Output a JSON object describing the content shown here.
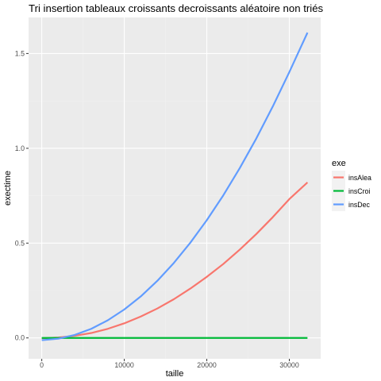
{
  "chart_data": {
    "type": "line",
    "title": "Tri insertion tableaux croissants decroissants aléatoire non triés",
    "xlabel": "taille",
    "ylabel": "exectime",
    "xlim": [
      -1600,
      33800
    ],
    "ylim": [
      -0.11,
      1.69
    ],
    "x_ticks": [
      0,
      10000,
      20000,
      30000
    ],
    "x_tick_labels": [
      "0",
      "10000",
      "20000",
      "30000"
    ],
    "y_ticks": [
      0.0,
      0.5,
      1.0,
      1.5
    ],
    "y_tick_labels": [
      "0.0",
      "0.5",
      "1.0",
      "1.5"
    ],
    "grid": true,
    "legend": {
      "title": "exe",
      "position": "right"
    },
    "series": [
      {
        "name": "insAlea",
        "color": "#F8766D",
        "x": [
          0,
          2000,
          4000,
          6000,
          8000,
          10000,
          12000,
          14000,
          16000,
          18000,
          20000,
          22000,
          24000,
          26000,
          28000,
          30000,
          32200
        ],
        "y": [
          -0.002,
          0.002,
          0.011,
          0.026,
          0.048,
          0.077,
          0.113,
          0.155,
          0.204,
          0.26,
          0.322,
          0.39,
          0.466,
          0.548,
          0.637,
          0.732,
          0.82
        ]
      },
      {
        "name": "insCroi",
        "color": "#00BA38",
        "x": [
          0,
          4000,
          8000,
          12000,
          16000,
          20000,
          24000,
          28000,
          32200
        ],
        "y": [
          0.0,
          0.0,
          0.0,
          0.0,
          0.0,
          0.0,
          0.0,
          0.0,
          0.0
        ]
      },
      {
        "name": "insDec",
        "color": "#619CFF",
        "x": [
          0,
          2000,
          4000,
          6000,
          8000,
          10000,
          12000,
          14000,
          16000,
          18000,
          20000,
          22000,
          24000,
          26000,
          28000,
          30000,
          32200
        ],
        "y": [
          -0.012,
          -0.004,
          0.016,
          0.048,
          0.093,
          0.15,
          0.219,
          0.301,
          0.395,
          0.502,
          0.621,
          0.752,
          0.896,
          1.052,
          1.221,
          1.402,
          1.61
        ]
      }
    ]
  }
}
